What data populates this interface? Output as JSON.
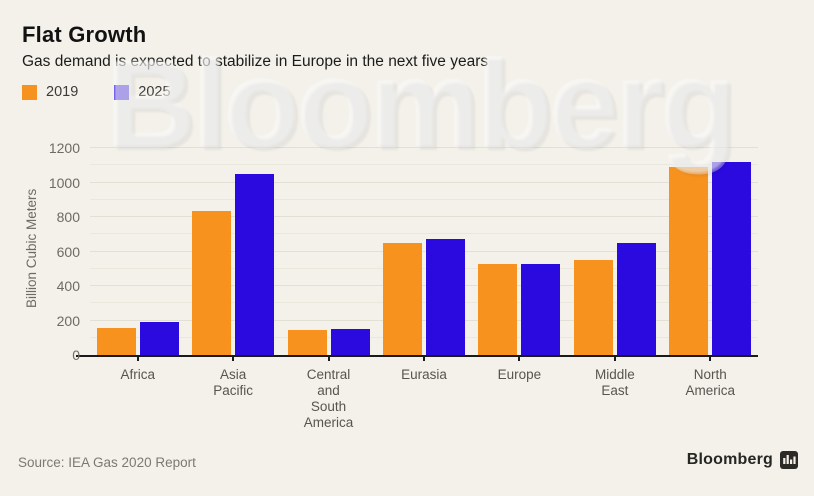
{
  "header": {
    "title": "Flat Growth",
    "subtitle": "Gas demand is expected to stabilize in Europe in the next five years"
  },
  "legend": {
    "items": [
      {
        "label": "2019",
        "color": "#f7921e"
      },
      {
        "label": "2025",
        "color": "#2b0ae0"
      }
    ]
  },
  "chart_data": {
    "type": "bar",
    "title": "Flat Growth",
    "subtitle": "Gas demand is expected to stabilize in Europe in the next five years",
    "xlabel": "",
    "ylabel": "Billion Cubic Meters",
    "ylim": [
      0,
      1200
    ],
    "ytick_step": 200,
    "minor_grid_step": 100,
    "grid": "horizontal",
    "legend_position": "top-left",
    "categories": [
      "Africa",
      "Asia Pacific",
      "Central and South America",
      "Eurasia",
      "Europe",
      "Middle East",
      "North America"
    ],
    "category_label_lines": [
      [
        "Africa"
      ],
      [
        "Asia",
        "Pacific"
      ],
      [
        "Central",
        "and",
        "South",
        "America"
      ],
      [
        "Eurasia"
      ],
      [
        "Europe"
      ],
      [
        "Middle",
        "East"
      ],
      [
        "North",
        "America"
      ]
    ],
    "series": [
      {
        "name": "2019",
        "color": "#f7921e",
        "values": [
          155,
          835,
          145,
          650,
          530,
          550,
          1090
        ]
      },
      {
        "name": "2025",
        "color": "#2b0ae0",
        "values": [
          190,
          1050,
          150,
          670,
          525,
          650,
          1120
        ]
      }
    ]
  },
  "watermark": "Bloomberg",
  "footer": {
    "source": "Source: IEA Gas 2020 Report",
    "brand": "Bloomberg"
  },
  "colors": {
    "background": "#f3f1ea",
    "axis": "#1a1a1a",
    "grid_major": "#e2dfd4",
    "grid_minor": "#eae8dd",
    "series_2019": "#f7921e",
    "series_2025": "#2b0ae0",
    "text_dark": "#121212",
    "text_gray": "#6d6b64"
  }
}
